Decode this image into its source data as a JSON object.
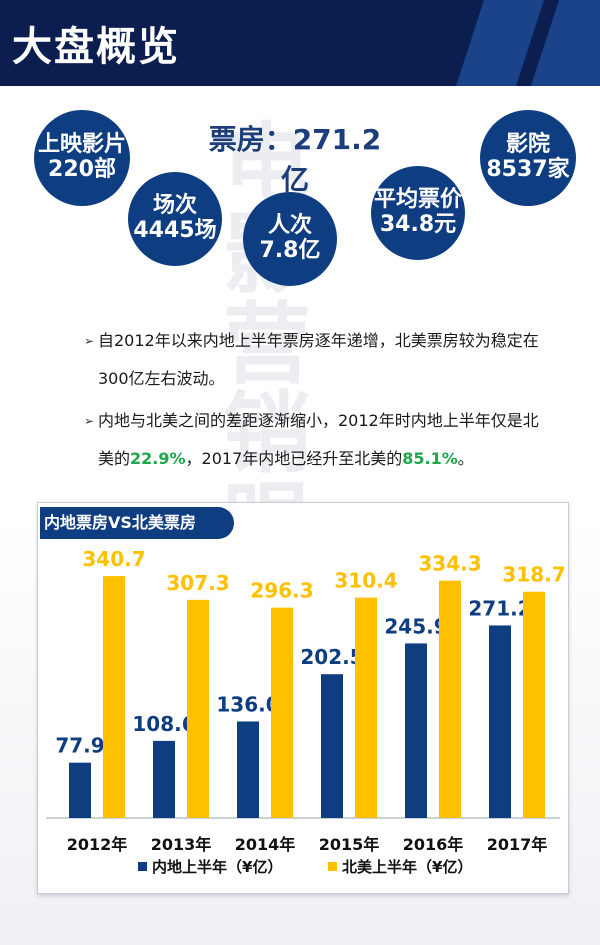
{
  "header": {
    "title": "大盘概览"
  },
  "headline": "票房：271.2亿",
  "stats": [
    {
      "line1": "上映影片",
      "line2": "220部"
    },
    {
      "line1": "场次",
      "line2": "4445场"
    },
    {
      "line1": "人次",
      "line2": "7.8亿"
    },
    {
      "line1": "平均票价",
      "line2": "34.8元"
    },
    {
      "line1": "影院",
      "line2": "8537家"
    }
  ],
  "watermark": "电影营销眼",
  "bullets": {
    "b1": "自2012年以来内地上半年票房逐年递增，北美票房较为稳定在300亿左右波动。",
    "b2_pre": "内地与北美之间的差距逐渐缩小，2012年时内地上半年仅是北美的",
    "b2_pct1": "22.9%",
    "b2_mid": "，2017年内地已经升至北美的",
    "b2_pct2": "85.1%",
    "b2_end": "。"
  },
  "colors": {
    "mainland": "#0f3d82",
    "na": "#ffc000",
    "pct_green": "#1aa84a"
  },
  "chart_data": {
    "type": "bar",
    "title": "内地票房VS北美票房",
    "categories": [
      "2012年",
      "2013年",
      "2014年",
      "2015年",
      "2016年",
      "2017年"
    ],
    "series": [
      {
        "name": "内地上半年（¥亿）",
        "values": [
          77.9,
          108.6,
          136.0,
          202.5,
          245.9,
          271.2
        ],
        "labels": [
          "77.9",
          "108.6",
          "136.0",
          "202.5",
          "245.9",
          "271.2"
        ]
      },
      {
        "name": "北美上半年（¥亿）",
        "values": [
          340.7,
          307.3,
          296.3,
          310.4,
          334.3,
          318.7
        ],
        "labels": [
          "340.7",
          "307.3",
          "296.3",
          "310.4",
          "334.3",
          "318.7"
        ]
      }
    ],
    "ylim": [
      0,
      400
    ],
    "legend": "bottom"
  }
}
